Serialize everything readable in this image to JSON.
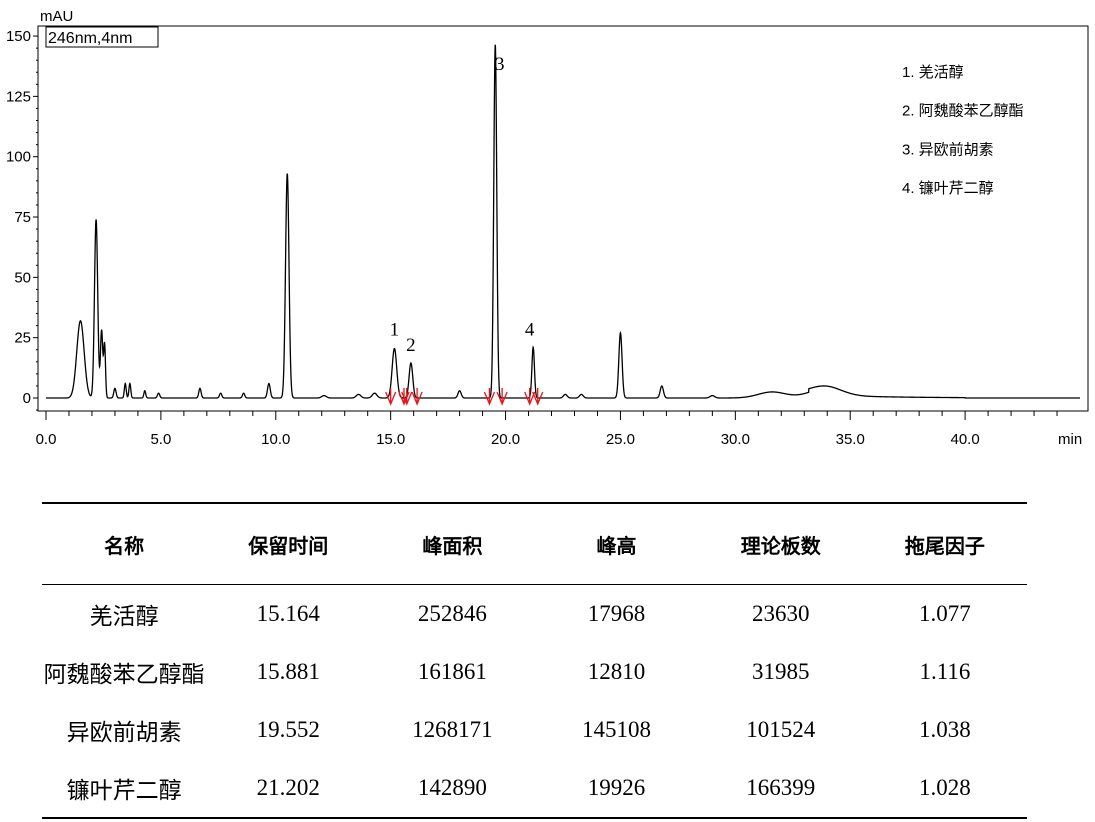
{
  "chart_data": {
    "type": "line",
    "yunit": "mAU",
    "xunit": "min",
    "detector_label": "246nm,4nm",
    "xlim": [
      0,
      45
    ],
    "ylim": [
      -8,
      155
    ],
    "xticks": [
      "0.0",
      "5.0",
      "10.0",
      "15.0",
      "20.0",
      "25.0",
      "30.0",
      "35.0",
      "40.0"
    ],
    "yticks": [
      "0",
      "25",
      "50",
      "75",
      "100",
      "125",
      "150"
    ],
    "baseline": 0,
    "peaks": [
      {
        "x": 1.5,
        "y": 32,
        "w": 0.16
      },
      {
        "x": 2.18,
        "y": 74,
        "w": 0.07
      },
      {
        "x": 2.42,
        "y": 28,
        "w": 0.05
      },
      {
        "x": 2.55,
        "y": 22,
        "w": 0.04
      },
      {
        "x": 3.0,
        "y": 4,
        "w": 0.05
      },
      {
        "x": 3.45,
        "y": 6,
        "w": 0.04
      },
      {
        "x": 3.65,
        "y": 6,
        "w": 0.04
      },
      {
        "x": 4.3,
        "y": 3,
        "w": 0.04
      },
      {
        "x": 4.9,
        "y": 2,
        "w": 0.05
      },
      {
        "x": 6.7,
        "y": 4,
        "w": 0.05
      },
      {
        "x": 7.6,
        "y": 2,
        "w": 0.05
      },
      {
        "x": 8.6,
        "y": 2,
        "w": 0.05
      },
      {
        "x": 9.7,
        "y": 6,
        "w": 0.06
      },
      {
        "x": 10.5,
        "y": 93,
        "w": 0.075
      },
      {
        "x": 12.1,
        "y": 1,
        "w": 0.1
      },
      {
        "x": 13.6,
        "y": 1.5,
        "w": 0.1
      },
      {
        "x": 14.3,
        "y": 2,
        "w": 0.1
      },
      {
        "x": 15.164,
        "y": 20.5,
        "w": 0.1
      },
      {
        "x": 15.881,
        "y": 14.5,
        "w": 0.08
      },
      {
        "x": 18.0,
        "y": 3,
        "w": 0.07
      },
      {
        "x": 19.552,
        "y": 146.5,
        "w": 0.065
      },
      {
        "x": 21.202,
        "y": 21,
        "w": 0.055
      },
      {
        "x": 22.6,
        "y": 1.5,
        "w": 0.08
      },
      {
        "x": 23.3,
        "y": 1.5,
        "w": 0.08
      },
      {
        "x": 25.0,
        "y": 27,
        "w": 0.07
      },
      {
        "x": 26.8,
        "y": 5,
        "w": 0.07
      },
      {
        "x": 29.0,
        "y": 1,
        "w": 0.1
      },
      {
        "x": 31.6,
        "y": 2.5,
        "w": 0.6
      },
      {
        "x": 33.9,
        "y": 3.8,
        "w": 0.7
      }
    ],
    "peak_labels": [
      {
        "text": "1",
        "x": 15.164,
        "y": 26
      },
      {
        "text": "2",
        "x": 15.881,
        "y": 19.5
      },
      {
        "text": "3",
        "x": 19.75,
        "y": 136
      },
      {
        "text": "4",
        "x": 21.05,
        "y": 26
      }
    ],
    "integration_marks": [
      15.0,
      15.58,
      15.7,
      16.15,
      19.3,
      19.85,
      21.05,
      21.4
    ],
    "legend": [
      "1.  羌活醇",
      "2.  阿魏酸苯乙醇酯",
      "3.  异欧前胡素",
      "4.  镰叶芹二醇"
    ],
    "line_color": "#000000",
    "marker_color": "#e8141b"
  },
  "table": {
    "headers": [
      "名称",
      "保留时间",
      "峰面积",
      "峰高",
      "理论板数",
      "拖尾因子"
    ],
    "rows": [
      [
        "羌活醇",
        "15.164",
        "252846",
        "17968",
        "23630",
        "1.077"
      ],
      [
        "阿魏酸苯乙醇酯",
        "15.881",
        "161861",
        "12810",
        "31985",
        "1.116"
      ],
      [
        "异欧前胡素",
        "19.552",
        "1268171",
        "145108",
        "101524",
        "1.038"
      ],
      [
        "镰叶芹二醇",
        "21.202",
        "142890",
        "19926",
        "166399",
        "1.028"
      ]
    ]
  }
}
